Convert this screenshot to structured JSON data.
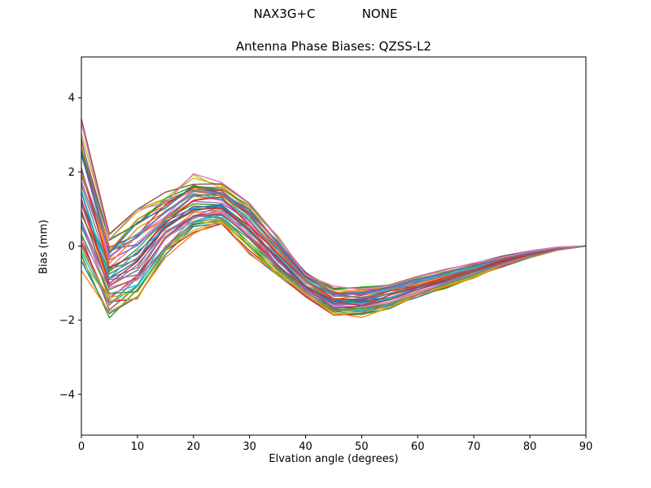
{
  "header": {
    "suptitle": "NAX3G+C            NONE"
  },
  "chart_data": {
    "type": "line",
    "title": "Antenna Phase Biases: QZSS-L2",
    "xlabel": "Elvation angle (degrees)",
    "ylabel": "Bias (mm)",
    "legend": "none",
    "grid": false,
    "xlim": [
      0,
      90
    ],
    "ylim": [
      -5.1,
      5.1
    ],
    "xticks": [
      0,
      10,
      20,
      30,
      40,
      50,
      60,
      70,
      80,
      90
    ],
    "xtick_labels": [
      "0",
      "10",
      "20",
      "30",
      "40",
      "50",
      "60",
      "70",
      "80",
      "90"
    ],
    "yticks": [
      -4,
      -2,
      0,
      2,
      4
    ],
    "ytick_labels": [
      "−4",
      "−2",
      "0",
      "2",
      "4"
    ],
    "x": [
      0,
      5,
      10,
      15,
      20,
      25,
      30,
      35,
      40,
      45,
      50,
      55,
      60,
      65,
      70,
      75,
      80,
      85,
      90
    ],
    "mean": [
      1.3,
      -0.8,
      -0.3,
      0.5,
      1.1,
      1.1,
      0.5,
      -0.3,
      -1.05,
      -1.5,
      -1.5,
      -1.35,
      -1.12,
      -0.9,
      -0.65,
      -0.42,
      -0.22,
      -0.07,
      0
    ],
    "halfwidth": [
      1.9,
      1.15,
      1.25,
      0.85,
      0.75,
      0.55,
      0.65,
      0.55,
      0.35,
      0.38,
      0.38,
      0.33,
      0.28,
      0.24,
      0.19,
      0.14,
      0.09,
      0.04,
      0
    ],
    "upper_envelope": [
      3.2,
      0.35,
      0.95,
      1.35,
      1.85,
      1.65,
      1.15,
      0.25,
      -0.7,
      -1.12,
      -1.12,
      -1.02,
      -0.84,
      -0.66,
      -0.46,
      -0.28,
      -0.13,
      -0.03,
      0
    ],
    "lower_envelope": [
      -0.6,
      -1.95,
      -1.55,
      -0.35,
      0.35,
      0.55,
      -0.15,
      -0.85,
      -1.4,
      -1.88,
      -1.88,
      -1.68,
      -1.4,
      -1.14,
      -0.84,
      -0.56,
      -0.31,
      -0.11,
      0
    ],
    "n_series": 48,
    "t_scale": 0.95,
    "jitter_scale": 0.4,
    "line_width": 1.4,
    "series_t": [
      -0.95,
      0.6,
      0.1,
      -0.4,
      0.85,
      -0.7,
      0.3,
      -0.15,
      0.95,
      -0.55,
      0.45,
      -0.25,
      0.7,
      -0.85,
      0.2,
      -0.05,
      0.55,
      -0.35,
      0.9,
      -0.65,
      0.05,
      0.35,
      -0.9,
      0.65,
      -0.2,
      0.8,
      -0.5,
      0.15,
      -0.75,
      0.5,
      -0.1,
      0.75,
      -0.6,
      0.25,
      -0.3,
      1.0,
      -0.45,
      0.4,
      -0.8,
      0.0,
      0.58,
      -0.98,
      0.88,
      -0.12,
      0.68,
      -0.28,
      0.98,
      -0.58
    ],
    "series_seed": [
      11,
      23,
      35,
      47,
      59,
      71,
      83,
      95,
      107,
      119,
      131,
      143,
      155,
      167,
      179,
      191,
      203,
      215,
      227,
      239,
      251,
      263,
      275,
      287,
      299,
      311,
      323,
      335,
      347,
      359,
      371,
      383,
      395,
      407,
      419,
      431,
      443,
      455,
      467,
      479,
      491,
      503,
      515,
      527,
      539,
      551,
      563,
      575
    ],
    "colors": [
      "#1f77b4",
      "#ff7f0e",
      "#2ca02c",
      "#d62728",
      "#9467bd",
      "#8c564b",
      "#e377c2",
      "#7f7f7f",
      "#bcbd22",
      "#17becf"
    ],
    "axis_color": "#000000",
    "background_color": "#ffffff"
  }
}
